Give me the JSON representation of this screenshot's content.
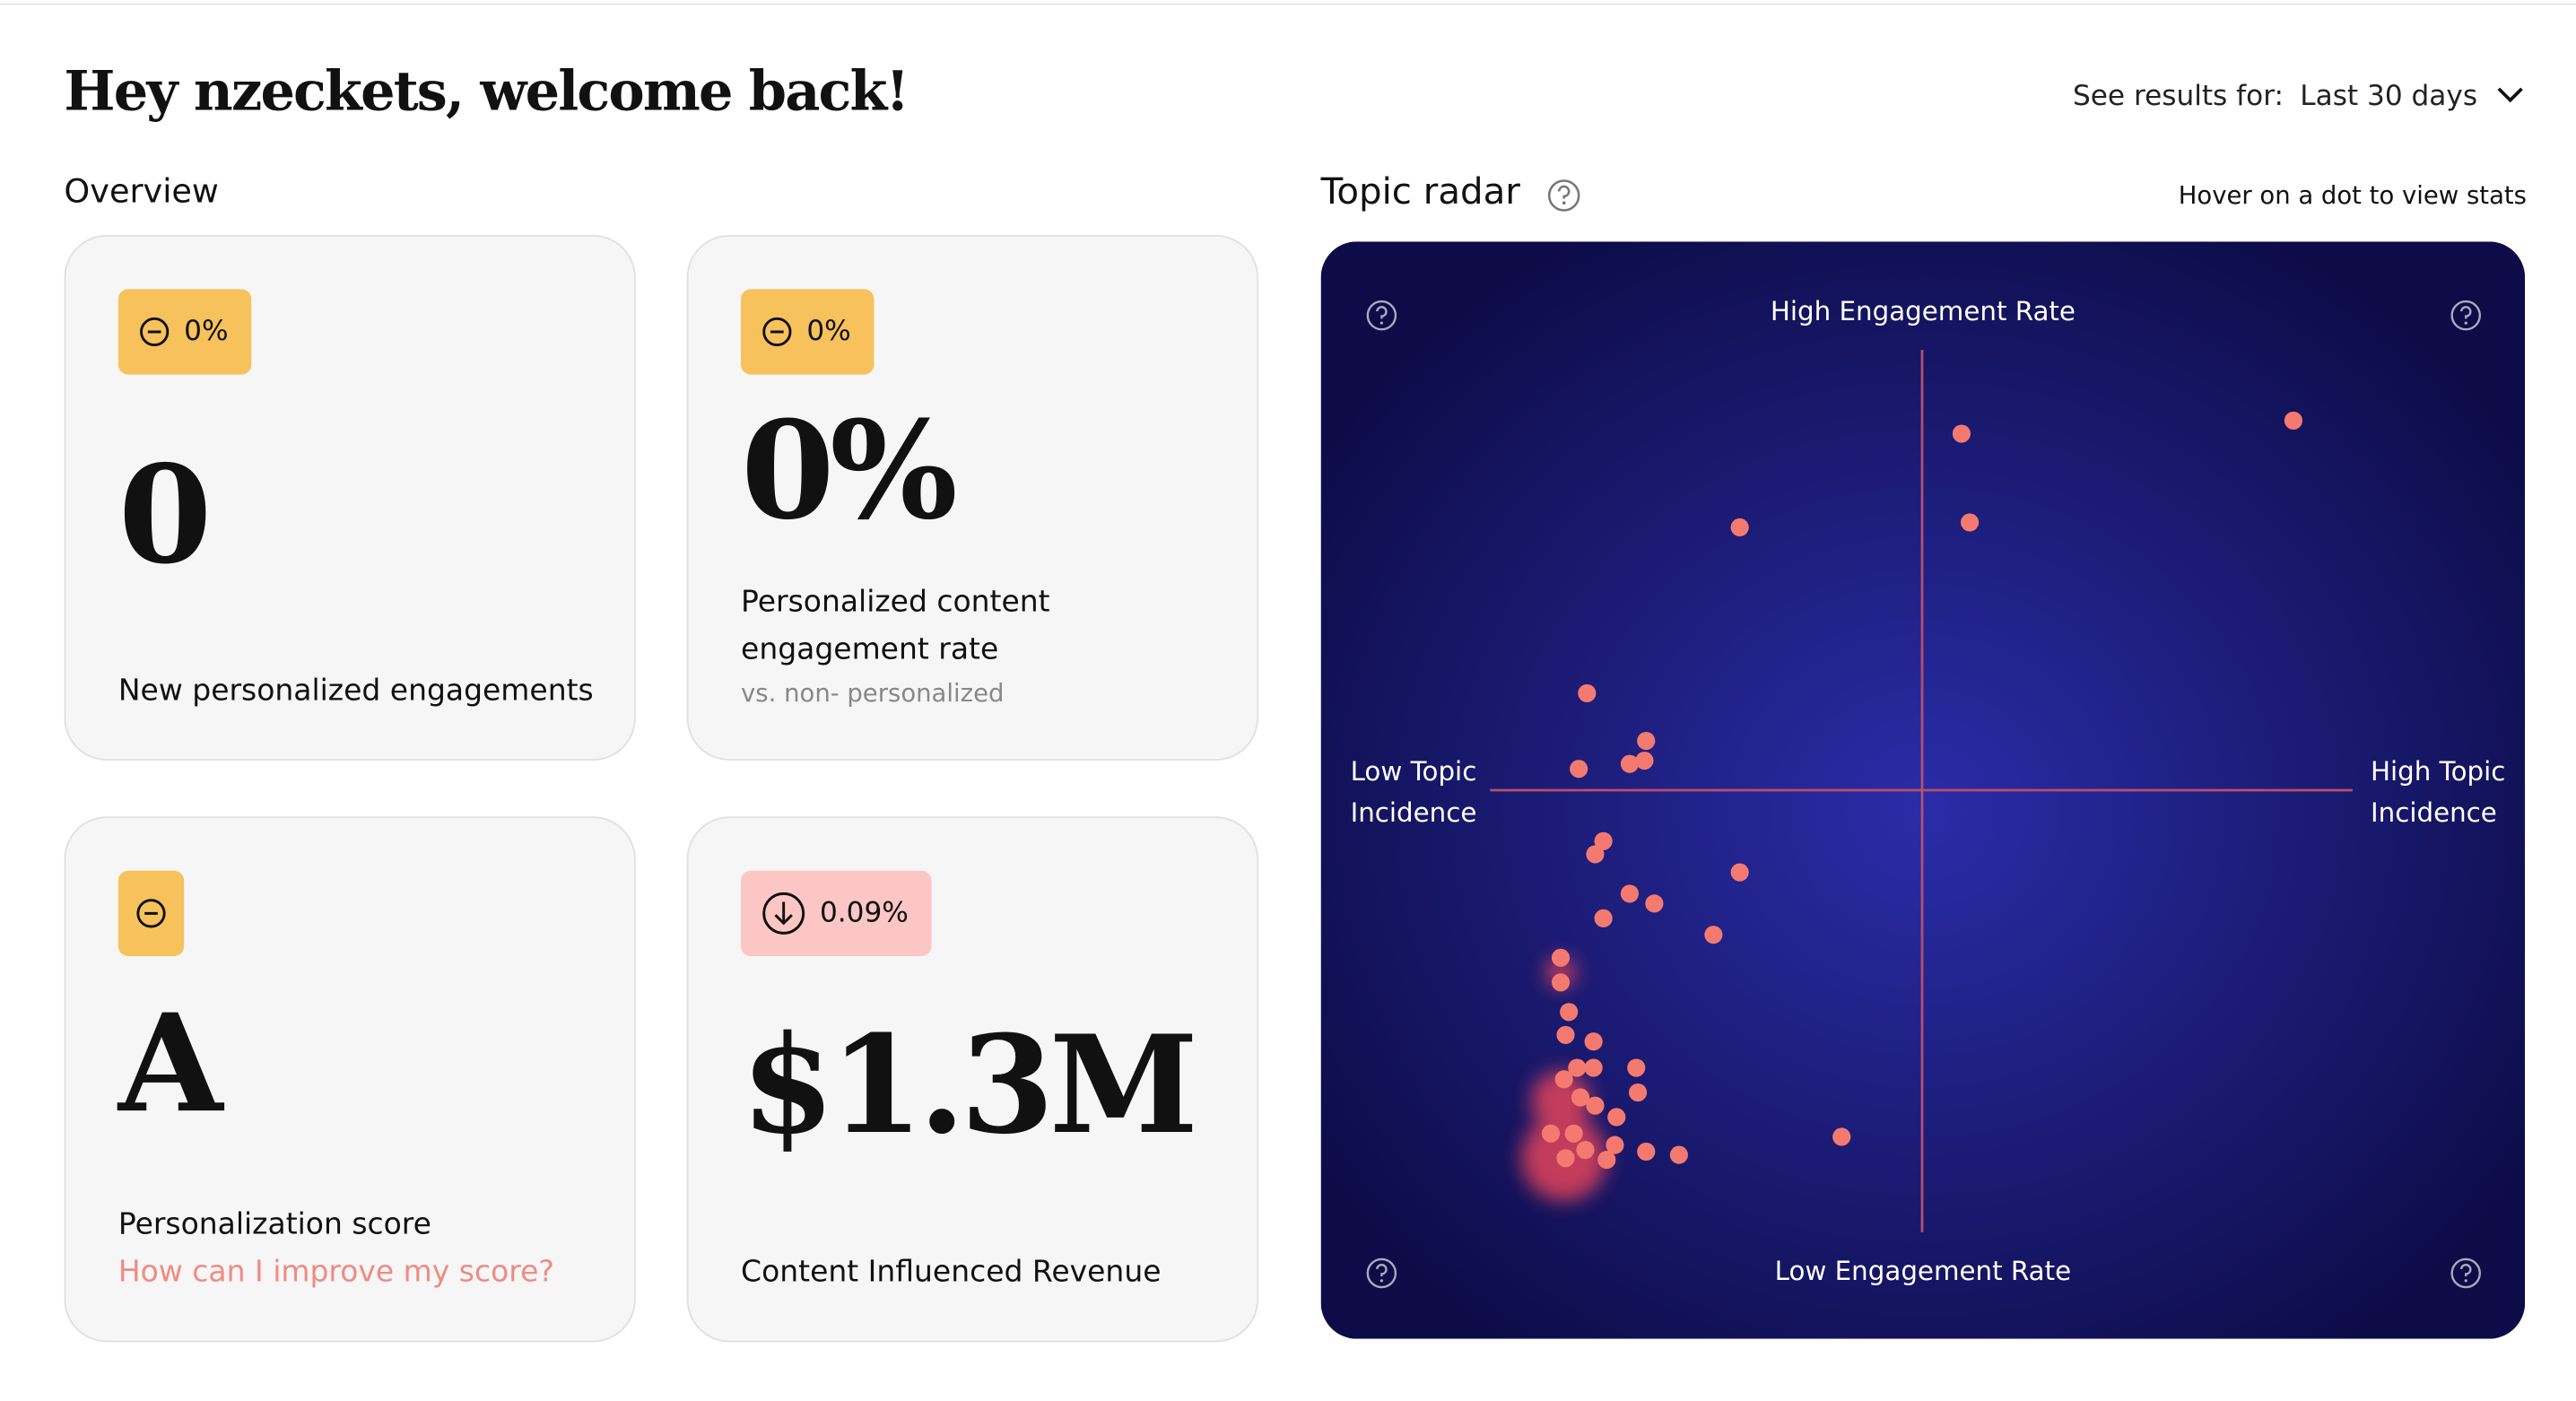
{
  "header": {
    "greeting": "Hey nzeckets, welcome back!",
    "period_label": "See results for:",
    "period_value": "Last 30 days"
  },
  "overview": {
    "title": "Overview",
    "cards": [
      {
        "badge": "0%",
        "value": "0",
        "label": "New personalized engagements"
      },
      {
        "badge": "0%",
        "value": "0%",
        "label": "Personalized content engagement rate",
        "sublabel": "vs. non- personalized"
      },
      {
        "value": "A",
        "label": "Personalization score",
        "link": "How can I improve my score?"
      },
      {
        "badge": "0.09%",
        "value": "$1.3M",
        "label": "Content Influenced Revenue"
      }
    ]
  },
  "radar": {
    "title": "Topic radar",
    "hint": "Hover on a dot to view stats",
    "top": "High Engagement Rate",
    "bottom": "Low Engagement Rate",
    "left": "Low Topic Incidence",
    "right": "High Topic Incidence"
  }
}
